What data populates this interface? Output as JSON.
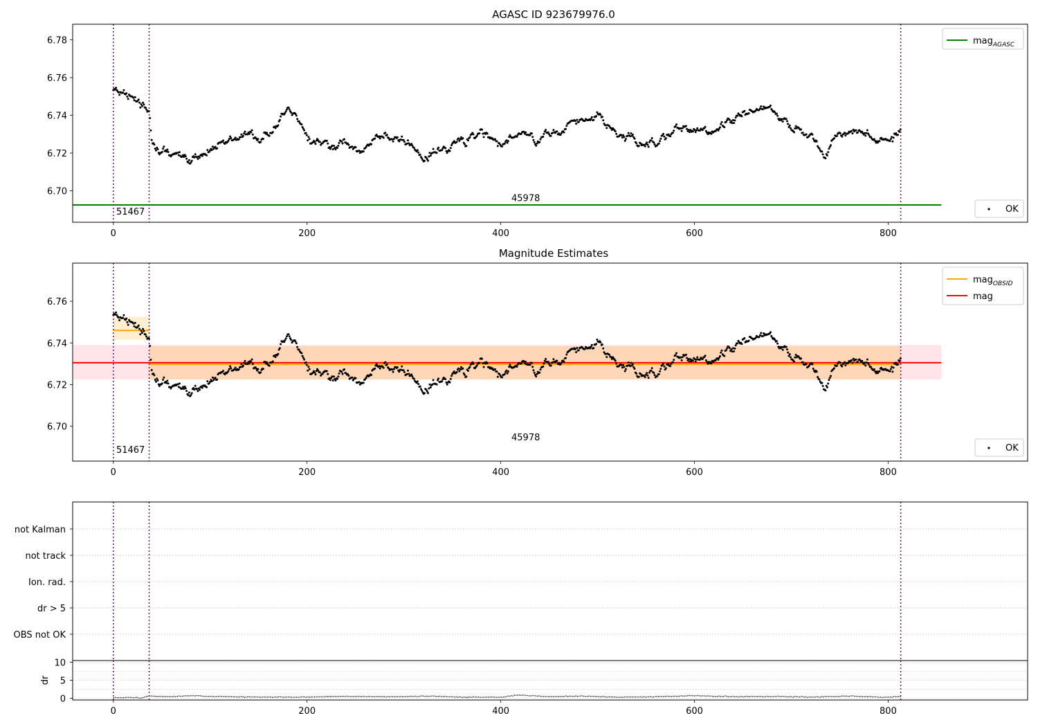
{
  "chart_data": [
    {
      "type": "scatter",
      "title": "AGASC ID 923679976.0",
      "xlabel": "",
      "ylabel": "",
      "xlim": [
        -42,
        944
      ],
      "ylim": [
        6.6833,
        6.7883
      ],
      "xticks": [
        0,
        200,
        400,
        600,
        800
      ],
      "yticks": [
        6.7,
        6.72,
        6.74,
        6.76,
        6.78
      ],
      "ytick_format": 2,
      "obs_boundaries": [
        0,
        37,
        813
      ],
      "annotations": [
        {
          "text": "51467",
          "x": 3,
          "y": 6.6873
        },
        {
          "text": "45978",
          "x": 411,
          "y": 6.6945
        }
      ],
      "lines": [
        {
          "name": "mag",
          "sub": "AGASC",
          "color": "#008000",
          "y": 6.6925,
          "x": [
            -42,
            855
          ]
        }
      ],
      "legend": {
        "position": "top-right",
        "entries": [
          {
            "label": "mag",
            "sub": "AGASC",
            "color": "#008000"
          }
        ]
      },
      "points_legend": {
        "position": "bottom-right",
        "label": "OK"
      },
      "series": [
        {
          "name": "OK",
          "color": "#000000",
          "x": [
            0,
            37,
            40,
            60,
            80,
            100,
            130,
            160,
            180,
            200,
            220,
            240,
            260,
            280,
            300,
            320,
            340,
            360,
            380,
            400,
            420,
            440,
            460,
            480,
            500,
            520,
            540,
            560,
            580,
            600,
            620,
            640,
            660,
            680,
            700,
            720,
            735,
            750,
            770,
            790,
            813
          ],
          "y": [
            6.754,
            6.742,
            6.724,
            6.721,
            6.717,
            6.722,
            6.729,
            6.729,
            6.743,
            6.727,
            6.726,
            6.725,
            6.721,
            6.73,
            6.727,
            6.718,
            6.722,
            6.727,
            6.73,
            6.724,
            6.73,
            6.725,
            6.733,
            6.737,
            6.74,
            6.729,
            6.727,
            6.726,
            6.733,
            6.731,
            6.732,
            6.738,
            6.743,
            6.742,
            6.734,
            6.731,
            6.717,
            6.731,
            6.733,
            6.726,
            6.732
          ]
        }
      ]
    },
    {
      "type": "scatter",
      "title": "Magnitude Estimates",
      "xlabel": "",
      "ylabel": "",
      "xlim": [
        -42,
        944
      ],
      "ylim": [
        6.6833,
        6.7783
      ],
      "xticks": [
        0,
        200,
        400,
        600,
        800
      ],
      "yticks": [
        6.7,
        6.72,
        6.74,
        6.76
      ],
      "ytick_format": 2,
      "obs_boundaries": [
        0,
        37,
        813
      ],
      "annotations": [
        {
          "text": "51467",
          "x": 3,
          "y": 6.6873
        },
        {
          "text": "45978",
          "x": 411,
          "y": 6.6933
        }
      ],
      "bands": [
        {
          "color": "#ff9eb0",
          "opacity": 0.28,
          "x": [
            -42,
            855
          ],
          "y": [
            6.7225,
            6.739
          ]
        },
        {
          "color": "#ffa500",
          "opacity": 0.18,
          "x": [
            0,
            37
          ],
          "y": [
            6.7415,
            6.7525
          ]
        },
        {
          "color": "#ffa500",
          "opacity": 0.22,
          "x": [
            37,
            813
          ],
          "y": [
            6.7225,
            6.7385
          ]
        }
      ],
      "lines": [
        {
          "name": "mag",
          "sub": "",
          "color": "#ff0000",
          "y": 6.7305,
          "x": [
            -42,
            855
          ]
        },
        {
          "name": "mag",
          "sub": "OBSID",
          "color": "#ffa500",
          "y": 6.746,
          "x": [
            0,
            37
          ]
        },
        {
          "name": "mag",
          "sub": "OBSID",
          "color": "#ffa500",
          "y": 6.7297,
          "x": [
            37,
            813
          ]
        }
      ],
      "legend": {
        "position": "top-right",
        "entries": [
          {
            "label": "mag",
            "sub": "OBSID",
            "color": "#ffa500"
          },
          {
            "label": "mag",
            "sub": "",
            "color": "#ff0000"
          }
        ]
      },
      "points_legend": {
        "position": "bottom-right",
        "label": "OK"
      },
      "series": [
        {
          "name": "OK",
          "color": "#000000",
          "x": [
            0,
            37,
            40,
            60,
            80,
            100,
            130,
            160,
            180,
            200,
            220,
            240,
            260,
            280,
            300,
            320,
            340,
            360,
            380,
            400,
            420,
            440,
            460,
            480,
            500,
            520,
            540,
            560,
            580,
            600,
            620,
            640,
            660,
            680,
            700,
            720,
            735,
            750,
            770,
            790,
            813
          ],
          "y": [
            6.754,
            6.742,
            6.724,
            6.721,
            6.717,
            6.722,
            6.729,
            6.729,
            6.743,
            6.727,
            6.726,
            6.725,
            6.721,
            6.73,
            6.727,
            6.718,
            6.722,
            6.727,
            6.73,
            6.724,
            6.73,
            6.725,
            6.733,
            6.737,
            6.74,
            6.729,
            6.727,
            6.726,
            6.733,
            6.731,
            6.732,
            6.738,
            6.743,
            6.742,
            6.734,
            6.731,
            6.717,
            6.731,
            6.733,
            6.726,
            6.732
          ]
        }
      ]
    },
    {
      "type": "scatter",
      "title": "",
      "xlabel": "",
      "ylabel": "",
      "xlim": [
        -42,
        944
      ],
      "categories": [
        "OBS not OK",
        "dr > 5",
        "Ion. rad.",
        "not track",
        "not Kalman"
      ],
      "grid": true,
      "obs_boundaries": [
        0,
        37,
        813
      ],
      "series": []
    },
    {
      "type": "line",
      "title": "",
      "xlabel": "",
      "ylabel": "dr",
      "xlim": [
        -42,
        944
      ],
      "ylim": [
        -0.5,
        10.5
      ],
      "xticks": [
        0,
        200,
        400,
        600,
        800
      ],
      "yticks": [
        0,
        5,
        10
      ],
      "ytick_format": 0,
      "obs_boundaries": [
        0,
        37,
        813
      ],
      "series": [
        {
          "name": "dr",
          "color": "#000000",
          "x": [
            0,
            30,
            37,
            60,
            80,
            100,
            150,
            200,
            240,
            300,
            330,
            360,
            400,
            420,
            450,
            480,
            520,
            560,
            600,
            640,
            680,
            720,
            760,
            790,
            813
          ],
          "y": [
            0.2,
            0.1,
            0.6,
            0.4,
            0.7,
            0.5,
            0.3,
            0.3,
            0.5,
            0.4,
            0.6,
            0.3,
            0.3,
            0.9,
            0.4,
            0.6,
            0.3,
            0.4,
            0.7,
            0.4,
            0.5,
            0.3,
            0.6,
            0.3,
            0.4
          ]
        }
      ]
    }
  ]
}
